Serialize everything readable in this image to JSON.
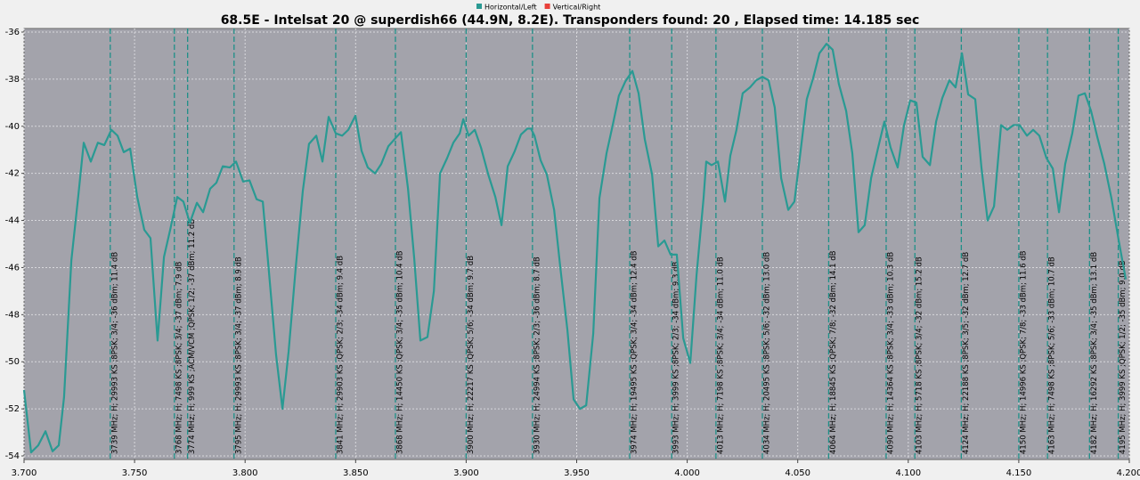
{
  "chart_data": {
    "type": "line",
    "title": "68.5E - Intelsat 20 @ superdish66 (44.9N, 8.2E). Transponders found: 20 , Elapsed time: 14.185 sec",
    "series": [
      {
        "name": "Horizontal/Left",
        "color": "#2a9a93",
        "x": [
          3.7,
          3.7032,
          3.7064,
          3.7097,
          3.7129,
          3.7157,
          3.7181,
          3.7214,
          3.7246,
          3.727,
          3.7302,
          3.7334,
          3.7363,
          3.7395,
          3.7423,
          3.7451,
          3.748,
          3.7512,
          3.7544,
          3.7572,
          3.7604,
          3.7633,
          3.7661,
          3.7693,
          3.7721,
          3.775,
          3.7782,
          3.781,
          3.7842,
          3.787,
          3.7899,
          3.7931,
          3.7959,
          3.7991,
          3.802,
          3.8052,
          3.808,
          3.8108,
          3.814,
          3.8169,
          3.8197,
          3.8229,
          3.8261,
          3.8289,
          3.8322,
          3.835,
          3.8378,
          3.841,
          3.8439,
          3.8467,
          3.8499,
          3.8527,
          3.8555,
          3.8588,
          3.8616,
          3.8648,
          3.8676,
          3.8705,
          3.8737,
          3.8765,
          3.8793,
          3.8825,
          3.8854,
          3.8882,
          3.8914,
          3.8942,
          3.8971,
          3.8987,
          3.9011,
          3.9039,
          3.9067,
          3.91,
          3.9132,
          3.916,
          3.9188,
          3.922,
          3.9248,
          3.9277,
          3.9293,
          3.9309,
          3.9337,
          3.9365,
          3.9398,
          3.9426,
          3.9458,
          3.9486,
          3.9515,
          3.9543,
          3.9575,
          3.9603,
          3.9635,
          3.9663,
          3.9691,
          3.972,
          3.9752,
          3.978,
          3.9808,
          3.9841,
          3.9869,
          3.9897,
          3.9925,
          3.9953,
          3.9982,
          4.0014,
          4.0042,
          4.0074,
          4.0086,
          4.011,
          4.0139,
          4.0171,
          4.0195,
          4.0223,
          4.0251,
          4.0284,
          4.0312,
          4.034,
          4.0368,
          4.0396,
          4.0425,
          4.0457,
          4.0485,
          4.0513,
          4.0541,
          4.057,
          4.0598,
          4.063,
          4.0658,
          4.0686,
          4.0719,
          4.0747,
          4.0775,
          4.0803,
          4.0832,
          4.0864,
          4.0892,
          4.092,
          4.0952,
          4.0981,
          4.1009,
          4.1037,
          4.1065,
          4.1098,
          4.1126,
          4.1154,
          4.1186,
          4.1214,
          4.1243,
          4.1271,
          4.1303,
          4.1331,
          4.1359,
          4.1388,
          4.142,
          4.1448,
          4.1476,
          4.1504,
          4.1537,
          4.1565,
          4.1593,
          4.1625,
          4.1654,
          4.1682,
          4.171,
          4.1742,
          4.177,
          4.1799,
          4.1827,
          4.1855,
          4.1887,
          4.1919,
          4.1952,
          4.1984
        ],
        "values": [
          -51.2,
          -53.85,
          -53.55,
          -52.95,
          -53.8,
          -53.55,
          -51.5,
          -45.7,
          -42.9,
          -40.7,
          -41.5,
          -40.7,
          -40.8,
          -40.15,
          -40.4,
          -41.1,
          -40.95,
          -43.0,
          -44.4,
          -44.75,
          -49.1,
          -45.55,
          -44.4,
          -43.0,
          -43.2,
          -44.1,
          -43.25,
          -43.65,
          -42.65,
          -42.4,
          -41.7,
          -41.75,
          -41.5,
          -42.35,
          -42.3,
          -43.1,
          -43.2,
          -46.2,
          -49.7,
          -52.0,
          -49.55,
          -46.0,
          -42.75,
          -40.75,
          -40.4,
          -41.5,
          -39.6,
          -40.3,
          -40.4,
          -40.15,
          -39.55,
          -41.05,
          -41.75,
          -42.0,
          -41.6,
          -40.85,
          -40.55,
          -40.25,
          -42.65,
          -45.6,
          -49.1,
          -48.95,
          -47.0,
          -42.0,
          -41.35,
          -40.7,
          -40.3,
          -39.7,
          -40.4,
          -40.15,
          -40.9,
          -42.05,
          -43.0,
          -44.2,
          -41.7,
          -41.05,
          -40.35,
          -40.1,
          -40.1,
          -40.4,
          -41.45,
          -42.05,
          -43.55,
          -46.0,
          -48.65,
          -51.6,
          -52.0,
          -51.85,
          -48.8,
          -43.05,
          -41.15,
          -39.95,
          -38.7,
          -38.1,
          -37.65,
          -38.6,
          -40.55,
          -42.05,
          -45.1,
          -44.85,
          -45.45,
          -45.45,
          -49.0,
          -50.05,
          -46.35,
          -43.05,
          -41.5,
          -41.65,
          -41.5,
          -43.2,
          -41.25,
          -40.15,
          -38.6,
          -38.35,
          -38.05,
          -37.9,
          -38.05,
          -39.2,
          -42.2,
          -43.55,
          -43.2,
          -41.05,
          -38.85,
          -37.95,
          -36.9,
          -36.5,
          -36.75,
          -38.2,
          -39.35,
          -41.15,
          -44.5,
          -44.2,
          -42.2,
          -40.9,
          -39.8,
          -40.9,
          -41.75,
          -39.95,
          -38.9,
          -39.0,
          -41.3,
          -41.65,
          -39.8,
          -38.8,
          -38.05,
          -38.35,
          -36.9,
          -38.65,
          -38.85,
          -41.75,
          -44.0,
          -43.4,
          -39.95,
          -40.15,
          -39.95,
          -39.95,
          -40.4,
          -40.15,
          -40.4,
          -41.35,
          -41.8,
          -43.65,
          -41.6,
          -40.3,
          -38.7,
          -38.6,
          -39.35,
          -40.45,
          -41.6,
          -43.05,
          -44.85,
          -46.5
        ]
      },
      {
        "name": "Vertical/Right",
        "color": "#e8403a"
      }
    ],
    "markers": [
      {
        "x": 3.739,
        "label": "3739 MHz; H; 29993 KS ;8PSK; 3/4; -36 dBm; 11.4 dB"
      },
      {
        "x": 3.768,
        "label": "3768 MHz; H; 7498 KS ;8PSK; 3/4; -37 dBm; 7.9 dB"
      },
      {
        "x": 3.774,
        "label": "3774 MHz; H; 999 KS ;ACM/VCM ;QPSK; 1/2; -37 dBm; 11.2 dB"
      },
      {
        "x": 3.795,
        "label": "3795 MHz; H; 29993 KS ;8PSK; 3/4; -37 dBm; 8.9 dB"
      },
      {
        "x": 3.841,
        "label": "3841 MHz; H; 29903 KS ;QPSK; 2/3; -34 dBm; 9.4 dB"
      },
      {
        "x": 3.868,
        "label": "3868 MHz; H; 14450 KS ;QPSK; 3/4; -35 dBm; 10.4 dB"
      },
      {
        "x": 3.9,
        "label": "3900 MHz; H; 22217 KS ;QPSK; 5/6; -34 dBm; 9.7 dB"
      },
      {
        "x": 3.93,
        "label": "3930 MHz; H; 24994 KS ;8PSK; 2/3; -36 dBm; 8.7 dB"
      },
      {
        "x": 3.974,
        "label": "3974 MHz; H; 19495 KS ;QPSK; 3/4; -34 dBm; 12.4 dB"
      },
      {
        "x": 3.993,
        "label": "3993 MHz; H; 3999 KS ;8PSK; 2/3; -34 dBm; 9.3 dB"
      },
      {
        "x": 4.013,
        "label": "4013 MHz; H; 7198 KS ;8PSK; 3/4; -34 dBm; 11.0 dB"
      },
      {
        "x": 4.034,
        "label": "4034 MHz; H; 20495 KS ;8PSK; 5/6; -32 dBm; 13.0 dB"
      },
      {
        "x": 4.064,
        "label": "4064 MHz; H; 18845 KS ;QPSK; 7/8; -32 dBm; 14.1 dB"
      },
      {
        "x": 4.09,
        "label": "4090 MHz; H; 14364 KS ;8PSK; 3/4; -33 dBm; 10.3 dB"
      },
      {
        "x": 4.103,
        "label": "4103 MHz; H; 5718 KS ;8PSK; 3/4; -32 dBm; 15.2 dB"
      },
      {
        "x": 4.124,
        "label": "4124 MHz; H; 22188 KS ;8PSK; 3/5; -32 dBm; 12.7 dB"
      },
      {
        "x": 4.15,
        "label": "4150 MHz; H; 14996 KS ;QPSK; 7/8; -33 dBm; 11.6 dB"
      },
      {
        "x": 4.163,
        "label": "4163 MHz; H; 7498 KS ;8PSK; 5/6; -33 dBm; 10.7 dB"
      },
      {
        "x": 4.182,
        "label": "4182 MHz; H; 16292 KS ;8PSK; 3/4; -35 dBm; 13.1 dB"
      },
      {
        "x": 4.195,
        "label": "4195 MHz; H; 3999 KS ;QPSK; 1/2; -35 dBm; 9.0 dB"
      }
    ],
    "marker_color": "#1f9088",
    "xlim": [
      3.7,
      4.2
    ],
    "xticks": [
      {
        "value": 3.7,
        "label": "3.700"
      },
      {
        "value": 3.75,
        "label": "3.750"
      },
      {
        "value": 3.8,
        "label": "3.800"
      },
      {
        "value": 3.85,
        "label": "3.850"
      },
      {
        "value": 3.9,
        "label": "3.900"
      },
      {
        "value": 3.95,
        "label": "3.950"
      },
      {
        "value": 4.0,
        "label": "4.000"
      },
      {
        "value": 4.05,
        "label": "4.050"
      },
      {
        "value": 4.1,
        "label": "4.100"
      },
      {
        "value": 4.15,
        "label": "4.150"
      },
      {
        "value": 4.2,
        "label": "4.200"
      }
    ],
    "ylim": [
      -54,
      -36
    ],
    "yticks": [
      -54,
      -52,
      -50,
      -48,
      -46,
      -44,
      -42,
      -40,
      -38,
      -36
    ],
    "grid": true
  }
}
